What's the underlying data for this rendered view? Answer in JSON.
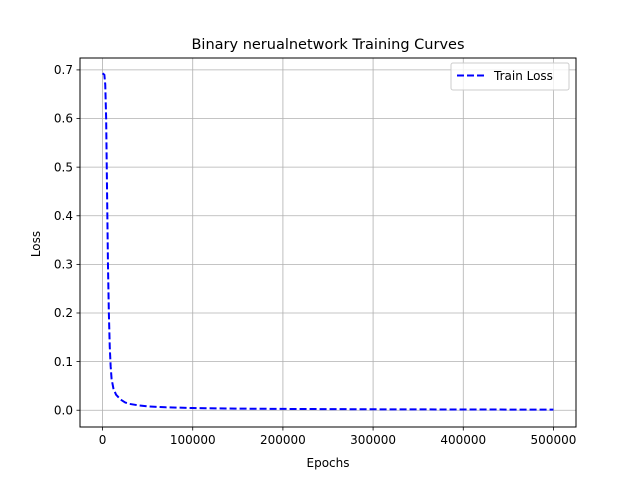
{
  "chart_data": {
    "type": "line",
    "title": "Binary nerualnetwork Training Curves",
    "xlabel": "Epochs",
    "ylabel": "Loss",
    "xlim": [
      -25000,
      525000
    ],
    "ylim": [
      -0.0345,
      0.7245
    ],
    "x_ticks": [
      0,
      100000,
      200000,
      300000,
      400000,
      500000
    ],
    "x_tick_labels": [
      "0",
      "100000",
      "200000",
      "300000",
      "400000",
      "500000"
    ],
    "y_ticks": [
      0.0,
      0.1,
      0.2,
      0.3,
      0.4,
      0.5,
      0.6,
      0.7
    ],
    "y_tick_labels": [
      "0.0",
      "0.1",
      "0.2",
      "0.3",
      "0.4",
      "0.5",
      "0.6",
      "0.7"
    ],
    "grid": true,
    "legend_position": "top-right",
    "series": [
      {
        "name": "Train Loss",
        "color": "#0000ff",
        "line_style": "dashed",
        "x": [
          0,
          2000,
          3000,
          4000,
          5000,
          6000,
          7000,
          8000,
          9000,
          10000,
          12000,
          15000,
          20000,
          25000,
          30000,
          40000,
          50000,
          70000,
          100000,
          150000,
          200000,
          300000,
          400000,
          500000
        ],
        "y": [
          0.693,
          0.69,
          0.67,
          0.6,
          0.45,
          0.3,
          0.2,
          0.13,
          0.09,
          0.065,
          0.045,
          0.032,
          0.022,
          0.016,
          0.013,
          0.01,
          0.008,
          0.006,
          0.0045,
          0.0033,
          0.0027,
          0.0019,
          0.0015,
          0.0012
        ]
      }
    ]
  }
}
